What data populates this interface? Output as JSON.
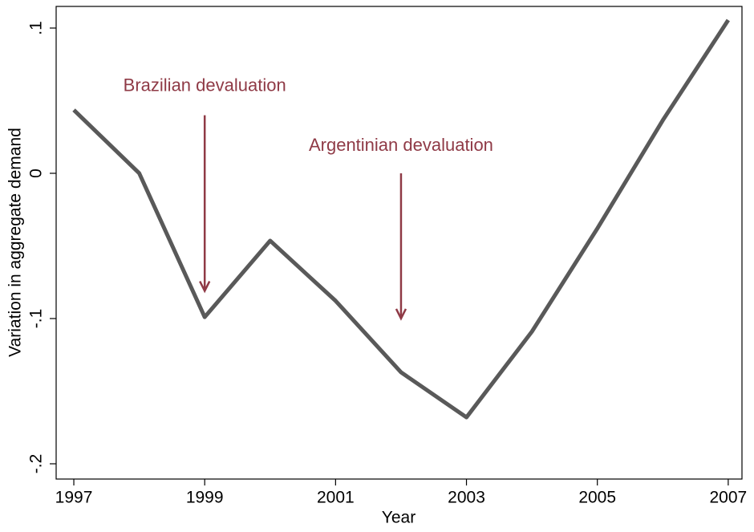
{
  "chart_data": {
    "type": "line",
    "y_label": "Variation in aggregate demand",
    "x_label": "Year",
    "x": [
      1997,
      1998,
      1999,
      2000,
      2001,
      2002,
      2003,
      2004,
      2005,
      2006,
      2007
    ],
    "series": [
      {
        "color": "#595959",
        "values": [
          0.0436,
          0,
          -0.099,
          -0.0464,
          -0.0878,
          -0.137,
          -0.168,
          -0.109,
          -0.038,
          0.0365,
          0.1055
        ]
      }
    ],
    "xlim": [
      1996.73,
      2007.21
    ],
    "ylim": [
      -0.2105,
      0.1149
    ],
    "xticks": [
      1997,
      1999,
      2001,
      2003,
      2005,
      2007
    ],
    "yticks": [
      {
        "value": 0.1,
        "label": ".1"
      },
      0,
      {
        "value": -0.1,
        "label": "-.1"
      },
      {
        "value": -0.2,
        "label": "-.2"
      }
    ],
    "annotations": [
      {
        "text": "Brazilian devaluation",
        "x": 1999,
        "y": 0.0597,
        "arrow": [
          0.04,
          -0.081
        ]
      },
      {
        "text": "Argentinian devaluation",
        "x": 2002,
        "y": 0.0188,
        "arrow": [
          0,
          -0.1
        ]
      }
    ],
    "annotation_color": "#8f3a46"
  }
}
